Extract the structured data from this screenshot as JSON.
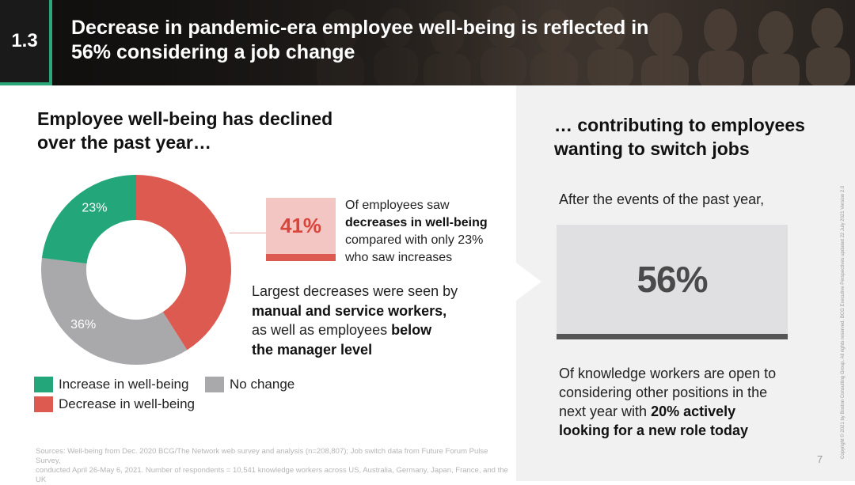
{
  "header": {
    "section_number": "1.3",
    "title_line1": "Decrease in pandemic-era employee well-being is reflected in",
    "title_line2": "56% considering a job change"
  },
  "left": {
    "heading_line1": "Employee well-being has declined",
    "heading_line2": "over the past year…"
  },
  "chart_data": {
    "type": "pie",
    "donut": true,
    "categories": [
      "Decrease in well-being",
      "No change",
      "Increase in well-being"
    ],
    "values": [
      41,
      36,
      23
    ],
    "colors": [
      "#dc5a4f",
      "#a9a8ab",
      "#23a679"
    ],
    "data_labels": [
      "41%",
      "36%",
      "23%"
    ],
    "legend": [
      {
        "label": "Increase in well-being",
        "color": "#23a679"
      },
      {
        "label": "No change",
        "color": "#a9a8ab"
      },
      {
        "label": "Decrease in well-being",
        "color": "#dc5a4f"
      }
    ]
  },
  "callout": {
    "value": "41%",
    "line1": "Of employees saw",
    "line2_bold": "decreases in well-being",
    "line3": "compared with only 23%",
    "line4": "who saw increases"
  },
  "largest": {
    "line1": "Largest decreases were seen by",
    "line2_bold": "manual and service workers,",
    "line3_pre": "as well as employees ",
    "line3_bold": "below",
    "line4_bold": "the manager level"
  },
  "right": {
    "heading_line1": "… contributing to employees",
    "heading_line2": "wanting to switch jobs",
    "after_text": "After the events of the past year,",
    "big_value": "56%",
    "body_line1": "Of knowledge workers are open to",
    "body_line2": "considering other positions in the",
    "body_line3_pre": "next year with ",
    "body_line3_bold": "20% actively",
    "body_line4_bold": "looking for a new role today"
  },
  "footer": {
    "sources_line1": "Sources: Well-being from Dec. 2020 BCG/The Network web survey and analysis (n=208,807); Job switch data from Future Forum Pulse Survey,",
    "sources_line2": "conducted April 26-May 6, 2021. Number of respondents = 10,541 knowledge workers across US, Australia, Germany, Japan, France, and the UK",
    "page_number": "7",
    "copyright": "Copyright © 2021 by Boston Consulting Group. All rights reserved. BCG Executive Perspectives updated 22 July 2021 Version 2.0"
  }
}
